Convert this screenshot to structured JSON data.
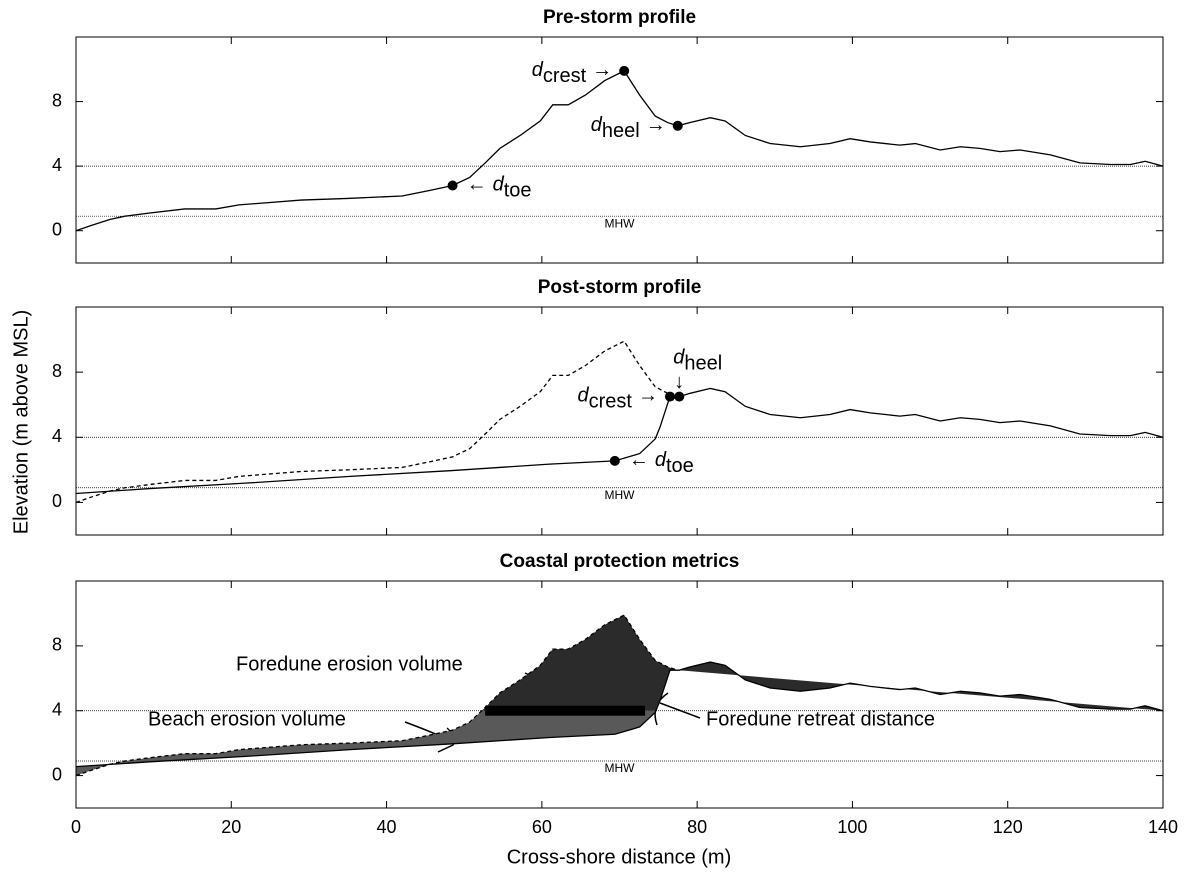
{
  "ylabel": "Elevation (m above MSL)",
  "xlabel": "Cross-shore distance (m)",
  "chart_data": [
    {
      "type": "line",
      "title": "Pre-storm profile",
      "xlim": [
        0,
        140
      ],
      "ylim": [
        -2,
        12
      ],
      "xticks": [
        0,
        20,
        40,
        60,
        80,
        100,
        120,
        140
      ],
      "yticks": [
        0,
        4,
        8
      ],
      "show_xtick_labels": false,
      "hlines": [
        {
          "value": 0.9,
          "label": "MHW"
        },
        {
          "value": 4
        }
      ],
      "series": [
        {
          "name": "Pre-storm",
          "color": "#000000",
          "dashed": false,
          "x": [
            0,
            1.8,
            4.4,
            6.3,
            9.5,
            14,
            18,
            21,
            29,
            35,
            42,
            45.6,
            48.5,
            50.7,
            52.7,
            54.6,
            57.2,
            59.8,
            61.4,
            63.4,
            65.6,
            68.1,
            70.6,
            72.6,
            74.6,
            76.2,
            77.5,
            79.1,
            81.7,
            83.6,
            86.2,
            89.4,
            93.3,
            97.1,
            99.7,
            102.3,
            106.1,
            108.1,
            111.3,
            113.9,
            116.4,
            119,
            121.6,
            125.5,
            129.3,
            133.2,
            135.8,
            137.7,
            140
          ],
          "values": [
            0,
            0.3,
            0.7,
            0.9,
            1.1,
            1.35,
            1.35,
            1.6,
            1.9,
            2.0,
            2.15,
            2.5,
            2.8,
            3.3,
            4.2,
            5.1,
            5.9,
            6.8,
            7.8,
            7.8,
            8.4,
            9.3,
            9.9,
            8.4,
            7.1,
            6.7,
            6.5,
            6.7,
            7.0,
            6.8,
            5.9,
            5.4,
            5.2,
            5.4,
            5.7,
            5.5,
            5.3,
            5.4,
            5.0,
            5.2,
            5.1,
            4.9,
            5.0,
            4.7,
            4.2,
            4.1,
            4.1,
            4.3,
            4.0
          ]
        }
      ],
      "points": {
        "x": [
          48.5,
          70.6,
          77.5
        ],
        "values": [
          2.8,
          9.9,
          6.5
        ],
        "labels": [
          {
            "symbol": "d",
            "subscript": "toe",
            "arrow": "←"
          },
          {
            "symbol": "d",
            "subscript": "crest",
            "arrow": "→"
          },
          {
            "symbol": "d",
            "subscript": "heel",
            "arrow": "→"
          }
        ]
      }
    },
    {
      "type": "line",
      "title": "Post-storm profile",
      "xlim": [
        0,
        140
      ],
      "ylim": [
        -2,
        12
      ],
      "xticks": [
        0,
        20,
        40,
        60,
        80,
        100,
        120,
        140
      ],
      "yticks": [
        0,
        4,
        8
      ],
      "show_xtick_labels": false,
      "hlines": [
        {
          "value": 0.9,
          "label": "MHW"
        },
        {
          "value": 4
        }
      ],
      "series": [
        {
          "name": "Pre-storm",
          "color": "#000000",
          "dashed": true,
          "x": [
            0,
            1.8,
            4.4,
            6.3,
            9.5,
            14,
            18,
            21,
            29,
            35,
            42,
            45.6,
            48.5,
            50.7,
            52.7,
            54.6,
            57.2,
            59.8,
            61.4,
            63.4,
            65.6,
            68.1,
            70.6,
            72.6,
            74.6,
            76.2,
            77.5
          ],
          "values": [
            0,
            0.3,
            0.7,
            0.9,
            1.1,
            1.35,
            1.35,
            1.6,
            1.9,
            2.0,
            2.15,
            2.5,
            2.8,
            3.3,
            4.2,
            5.1,
            5.9,
            6.8,
            7.8,
            7.8,
            8.4,
            9.3,
            9.9,
            8.4,
            7.1,
            6.7,
            6.5
          ]
        },
        {
          "name": "Post-storm",
          "color": "#000000",
          "dashed": false,
          "x": [
            0,
            9.5,
            22.4,
            35.3,
            48.2,
            61,
            69.4,
            72.6,
            74.6,
            75.2,
            76.5,
            77.7,
            79.1,
            81.7,
            83.6,
            86.2,
            89.4,
            93.3,
            97.1,
            99.7,
            102.3,
            106.1,
            108.1,
            111.3,
            113.9,
            116.4,
            119,
            121.6,
            125.5,
            129.3,
            133.2,
            135.8,
            137.7,
            140
          ],
          "values": [
            0.55,
            0.85,
            1.2,
            1.6,
            1.95,
            2.35,
            2.55,
            3.0,
            3.9,
            4.6,
            6.5,
            6.5,
            6.7,
            7.0,
            6.8,
            5.9,
            5.4,
            5.2,
            5.4,
            5.7,
            5.5,
            5.3,
            5.4,
            5.0,
            5.2,
            5.1,
            4.9,
            5.0,
            4.7,
            4.2,
            4.1,
            4.1,
            4.3,
            4.0
          ]
        }
      ],
      "points": {
        "x": [
          69.4,
          76.5,
          77.7
        ],
        "values": [
          2.55,
          6.5,
          6.5
        ],
        "labels": [
          {
            "symbol": "d",
            "subscript": "toe",
            "arrow": "←"
          },
          {
            "symbol": "d",
            "subscript": "crest",
            "arrow": "→"
          },
          {
            "symbol": "d",
            "subscript": "heel",
            "arrow": "↓"
          }
        ]
      }
    },
    {
      "type": "line",
      "title": "Coastal protection metrics",
      "xlim": [
        0,
        140
      ],
      "ylim": [
        -2,
        12
      ],
      "xticks": [
        0,
        20,
        40,
        60,
        80,
        100,
        120,
        140
      ],
      "yticks": [
        0,
        4,
        8
      ],
      "show_xtick_labels": true,
      "hlines": [
        {
          "value": 0.9,
          "label": "MHW"
        },
        {
          "value": 4
        }
      ],
      "series": [
        {
          "name": "Pre-storm",
          "color": "#000000",
          "dashed": true,
          "x": [
            0,
            1.8,
            4.4,
            6.3,
            9.5,
            14,
            18,
            21,
            29,
            35,
            42,
            45.6,
            48.5,
            50.7,
            52.7,
            54.6,
            57.2,
            59.8,
            61.4,
            63.4,
            65.6,
            68.1,
            70.6,
            72.6,
            74.6,
            76.2,
            77.5
          ],
          "values": [
            0,
            0.3,
            0.7,
            0.9,
            1.1,
            1.35,
            1.35,
            1.6,
            1.9,
            2.0,
            2.15,
            2.5,
            2.8,
            3.3,
            4.2,
            5.1,
            5.9,
            6.8,
            7.8,
            7.8,
            8.4,
            9.3,
            9.9,
            8.4,
            7.1,
            6.7,
            6.5
          ]
        },
        {
          "name": "Post-storm",
          "color": "#000000",
          "dashed": false,
          "x": [
            0,
            9.5,
            22.4,
            35.3,
            48.2,
            61,
            69.4,
            72.6,
            74.6,
            75.2,
            76.5,
            77.7,
            79.1,
            81.7,
            83.6,
            86.2,
            89.4,
            93.3,
            97.1,
            99.7,
            102.3,
            106.1,
            108.1,
            111.3,
            113.9,
            116.4,
            119,
            121.6,
            125.5,
            129.3,
            133.2,
            135.8,
            137.7,
            140
          ],
          "values": [
            0.55,
            0.85,
            1.2,
            1.6,
            1.95,
            2.35,
            2.55,
            3.0,
            3.9,
            4.6,
            6.5,
            6.5,
            6.7,
            7.0,
            6.8,
            5.9,
            5.4,
            5.2,
            5.4,
            5.7,
            5.5,
            5.3,
            5.4,
            5.0,
            5.2,
            5.1,
            4.9,
            5.0,
            4.7,
            4.2,
            4.1,
            4.1,
            4.3,
            4.0
          ]
        }
      ],
      "areas": [
        {
          "name": "Foredune erosion volume",
          "color": "#2b2b2b",
          "side": "above",
          "value": 4
        },
        {
          "name": "Beach erosion volume",
          "color": "#595959",
          "side": "below",
          "value": 4
        }
      ],
      "retreat": {
        "name": "Foredune retreat distance",
        "x": [
          52.7,
          73.3
        ],
        "value": 4,
        "color": "#000000"
      }
    }
  ]
}
